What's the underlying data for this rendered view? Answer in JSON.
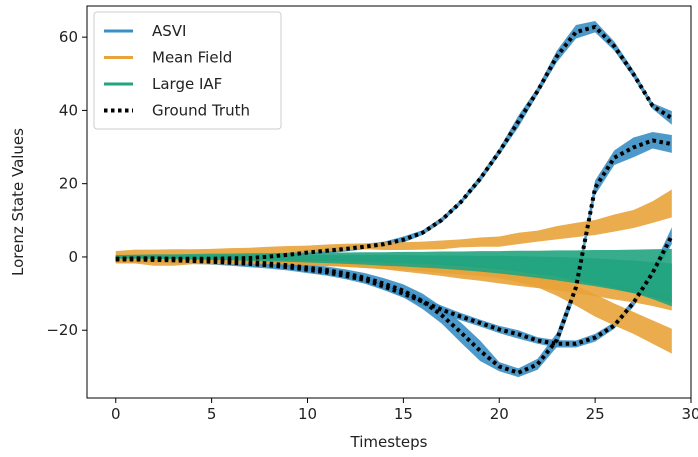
{
  "chart_data": {
    "type": "line",
    "xlabel": "Timesteps",
    "ylabel": "Lorenz State Values",
    "xlim": [
      -1.5,
      30
    ],
    "ylim": [
      -38.5,
      68.5
    ],
    "xticks": [
      0,
      5,
      10,
      15,
      20,
      25,
      30
    ],
    "yticks": [
      -20,
      0,
      20,
      40,
      60
    ],
    "grid": false,
    "legend_position": "top-left",
    "x": [
      0,
      1,
      2,
      3,
      4,
      5,
      6,
      7,
      8,
      9,
      10,
      11,
      12,
      13,
      14,
      15,
      16,
      17,
      18,
      19,
      20,
      21,
      22,
      23,
      24,
      25,
      26,
      27,
      28,
      29
    ],
    "series": [
      {
        "name": "ASVI",
        "color": "#3a8fc4",
        "style": "band",
        "bands": [
          {
            "lower": [
              -1.2,
              -1.1,
              -1.1,
              -1.1,
              -1.2,
              -1.3,
              -1.3,
              -1.0,
              -0.6,
              0.0,
              0.6,
              1.0,
              1.5,
              2.1,
              2.9,
              3.9,
              6.0,
              9.4,
              14.4,
              20.4,
              27.8,
              35.4,
              44.3,
              53.1,
              59.6,
              61.3,
              56.3,
              48.9,
              40.4,
              36.1
            ],
            "upper": [
              0.6,
              0.4,
              0.3,
              0.1,
              0.2,
              0.2,
              0.4,
              0.4,
              0.9,
              1.2,
              2.0,
              2.4,
              3.0,
              3.6,
              4.2,
              5.6,
              7.3,
              10.8,
              15.6,
              22.2,
              29.6,
              38.6,
              46.3,
              56.3,
              63.3,
              64.4,
              58.8,
              51.0,
              42.0,
              39.8
            ]
          },
          {
            "lower": [
              -1.3,
              -1.3,
              -1.3,
              -1.3,
              -1.4,
              -1.6,
              -1.8,
              -2.2,
              -2.6,
              -3.1,
              -3.8,
              -4.6,
              -5.6,
              -7.0,
              -8.8,
              -11.0,
              -14.2,
              -18.2,
              -23.4,
              -28.4,
              -31.2,
              -32.8,
              -30.8,
              -24.6,
              -9.9,
              16.9,
              25.1,
              27.2,
              29.6,
              28.4
            ],
            "upper": [
              0.2,
              0.2,
              0.2,
              0.1,
              0.0,
              -0.1,
              -0.4,
              -0.6,
              -1.0,
              -1.4,
              -2.0,
              -2.6,
              -3.4,
              -4.4,
              -5.8,
              -7.5,
              -10.0,
              -13.6,
              -17.9,
              -22.8,
              -28.7,
              -30.4,
              -27.8,
              -20.8,
              -6.7,
              20.9,
              29.1,
              32.6,
              34.1,
              33.3
            ]
          },
          {
            "lower": [
              -1.6,
              -1.5,
              -1.6,
              -1.7,
              -1.9,
              -2.1,
              -2.4,
              -2.8,
              -3.2,
              -3.7,
              -4.4,
              -5.1,
              -6.1,
              -7.3,
              -9.1,
              -11.1,
              -13.3,
              -15.6,
              -17.3,
              -19.0,
              -20.8,
              -22.3,
              -23.7,
              -24.7,
              -24.7,
              -23.1,
              -19.6,
              -13.6,
              -5.6,
              3.5
            ],
            "upper": [
              0.2,
              0.1,
              0.0,
              -0.1,
              -0.3,
              -0.5,
              -0.8,
              -1.1,
              -1.5,
              -2.0,
              -2.6,
              -3.3,
              -4.2,
              -5.4,
              -7.1,
              -8.9,
              -11.1,
              -13.3,
              -15.3,
              -17.1,
              -18.8,
              -20.0,
              -21.9,
              -22.7,
              -22.8,
              -21.0,
              -17.8,
              -11.5,
              -3.1,
              8.1
            ]
          }
        ]
      },
      {
        "name": "Mean Field",
        "color": "#e8a33a",
        "style": "band",
        "bands": [
          {
            "lower": [
              -1.6,
              -0.6,
              -1.1,
              -0.5,
              -0.3,
              0.0,
              0.4,
              0.5,
              0.8,
              1.1,
              1.2,
              1.6,
              1.8,
              2.1,
              1.9,
              1.9,
              2.0,
              2.1,
              2.6,
              2.8,
              2.8,
              3.5,
              4.2,
              4.8,
              5.4,
              6.0,
              6.9,
              7.9,
              9.3,
              10.8
            ],
            "upper": [
              1.6,
              2.0,
              2.0,
              2.1,
              2.1,
              2.2,
              2.4,
              2.5,
              2.8,
              3.0,
              3.1,
              3.4,
              3.6,
              3.7,
              4.0,
              4.0,
              4.2,
              4.5,
              4.8,
              5.3,
              5.6,
              6.6,
              7.2,
              8.4,
              9.3,
              10.1,
              11.6,
              12.8,
              15.2,
              18.4
            ]
          },
          {
            "lower": [
              -1.2,
              -1.3,
              -1.3,
              -1.3,
              -1.3,
              -1.3,
              -1.4,
              -1.5,
              -1.8,
              -1.9,
              -2.2,
              -2.4,
              -2.7,
              -3.0,
              -3.4,
              -4.0,
              -4.6,
              -5.2,
              -5.9,
              -6.5,
              -7.2,
              -7.9,
              -8.5,
              -9.1,
              -9.9,
              -10.7,
              -11.6,
              -12.4,
              -13.4,
              -14.6
            ],
            "upper": [
              0.6,
              0.5,
              0.4,
              0.3,
              0.3,
              0.2,
              0.1,
              0.0,
              -0.1,
              -0.2,
              -0.4,
              -0.6,
              -0.8,
              -1.0,
              -1.3,
              -1.6,
              -2.0,
              -2.5,
              -2.9,
              -3.4,
              -3.9,
              -4.5,
              -5.0,
              -5.6,
              -6.3,
              -7.0,
              -7.7,
              -8.4,
              -9.2,
              -10.1
            ]
          },
          {
            "lower": [
              -1.8,
              -1.8,
              -2.4,
              -2.4,
              -2.0,
              -2.0,
              -2.0,
              -2.0,
              -2.0,
              -2.1,
              -2.3,
              -2.5,
              -2.7,
              -3.0,
              -3.3,
              -3.6,
              -3.9,
              -4.4,
              -4.8,
              -5.2,
              -5.8,
              -6.9,
              -8.3,
              -10.6,
              -13.3,
              -16.3,
              -18.7,
              -21.0,
              -23.7,
              -26.4
            ],
            "upper": [
              0.0,
              -0.1,
              -0.3,
              -0.5,
              -0.6,
              -0.6,
              -0.6,
              -0.6,
              -0.6,
              -0.6,
              -0.6,
              -0.7,
              -0.8,
              -0.9,
              -1.0,
              -1.2,
              -1.4,
              -1.6,
              -2.0,
              -2.5,
              -3.0,
              -3.6,
              -4.4,
              -5.8,
              -7.9,
              -10.2,
              -12.7,
              -15.0,
              -17.3,
              -19.6
            ]
          }
        ]
      },
      {
        "name": "Large IAF",
        "color": "#21a47f",
        "style": "band",
        "bands": [
          {
            "lower": [
              -0.5,
              -0.5,
              -0.5,
              -0.6,
              -0.7,
              -0.8,
              -0.9,
              -1.1,
              -1.2,
              -1.3,
              -1.5,
              -1.7,
              -1.9,
              -2.1,
              -2.4,
              -2.6,
              -2.9,
              -3.2,
              -3.6,
              -4.0,
              -4.5,
              -5.1,
              -5.7,
              -6.4,
              -7.2,
              -8.0,
              -8.9,
              -9.9,
              -11.0,
              -12.5
            ],
            "upper": [
              0.5,
              0.6,
              0.7,
              0.7,
              0.8,
              0.9,
              0.9,
              1.0,
              1.0,
              1.1,
              1.1,
              1.2,
              1.2,
              1.3,
              1.3,
              1.4,
              1.4,
              1.5,
              1.5,
              1.6,
              1.6,
              1.7,
              1.7,
              1.8,
              1.8,
              1.9,
              1.9,
              2.0,
              2.1,
              2.2
            ]
          },
          {
            "lower": [
              -0.4,
              -0.4,
              -0.5,
              -0.5,
              -0.6,
              -0.6,
              -0.7,
              -0.7,
              -0.8,
              -0.9,
              -1.0,
              -1.1,
              -1.2,
              -1.3,
              -1.5,
              -1.7,
              -1.9,
              -2.2,
              -2.5,
              -2.9,
              -3.4,
              -4.0,
              -4.7,
              -5.5,
              -6.4,
              -7.4,
              -8.5,
              -9.8,
              -11.5,
              -13.5
            ],
            "upper": [
              0.4,
              0.4,
              0.4,
              0.4,
              0.5,
              0.5,
              0.5,
              0.5,
              0.5,
              0.5,
              0.5,
              0.5,
              0.5,
              0.5,
              0.5,
              0.5,
              0.4,
              0.4,
              0.4,
              0.3,
              0.3,
              0.2,
              0.1,
              0.0,
              -0.2,
              -0.4,
              -0.7,
              -1.0,
              -1.4,
              -1.8
            ]
          }
        ]
      },
      {
        "name": "Ground Truth",
        "color": "#000000",
        "style": "dotted",
        "lines": [
          [
            -0.5,
            -0.4,
            -0.4,
            -0.5,
            -0.5,
            -0.5,
            -0.4,
            -0.3,
            0.1,
            0.6,
            1.2,
            1.7,
            2.2,
            2.8,
            3.5,
            4.7,
            6.6,
            10.1,
            15.0,
            21.3,
            28.7,
            37.0,
            45.3,
            54.7,
            61.4,
            62.8,
            57.5,
            49.9,
            41.2,
            37.9
          ],
          [
            -0.5,
            -0.5,
            -0.5,
            -0.6,
            -0.7,
            -0.9,
            -1.1,
            -1.4,
            -1.8,
            -2.3,
            -2.9,
            -3.6,
            -4.5,
            -5.7,
            -7.3,
            -9.2,
            -12.1,
            -15.9,
            -20.6,
            -25.6,
            -29.9,
            -31.6,
            -29.3,
            -22.7,
            -8.3,
            18.9,
            27.1,
            29.9,
            31.8,
            30.8
          ],
          [
            -0.7,
            -0.7,
            -0.8,
            -0.9,
            -1.1,
            -1.3,
            -1.6,
            -1.9,
            -2.3,
            -2.8,
            -3.5,
            -4.2,
            -5.2,
            -6.3,
            -8.1,
            -10.0,
            -12.2,
            -14.4,
            -16.3,
            -18.0,
            -19.8,
            -21.1,
            -22.8,
            -23.7,
            -23.7,
            -22.0,
            -18.7,
            -12.5,
            -4.3,
            5.8
          ]
        ]
      }
    ]
  }
}
